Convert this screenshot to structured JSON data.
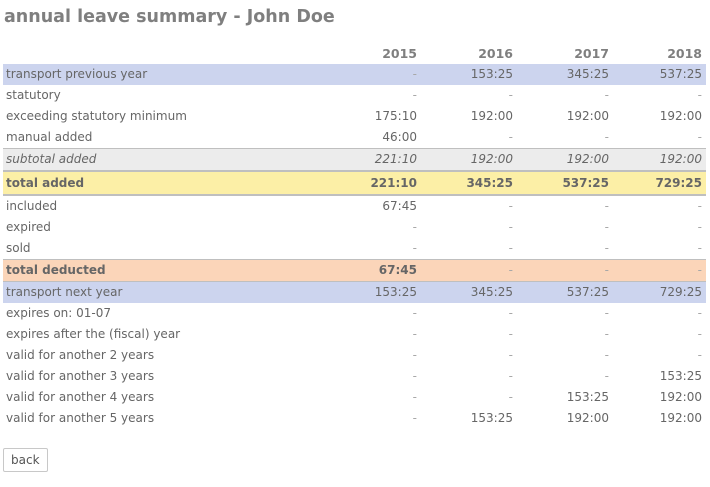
{
  "page": {
    "title": "annual leave summary - John Doe"
  },
  "table": {
    "years": [
      "2015",
      "2016",
      "2017",
      "2018"
    ],
    "rows": [
      {
        "style": "blue",
        "label": "transport previous year",
        "values": [
          "-",
          "153:25",
          "345:25",
          "537:25"
        ]
      },
      {
        "style": "plain",
        "label": "statutory",
        "values": [
          "-",
          "-",
          "-",
          "-"
        ]
      },
      {
        "style": "plain",
        "label": "exceeding statutory minimum",
        "values": [
          "175:10",
          "192:00",
          "192:00",
          "192:00"
        ]
      },
      {
        "style": "plain",
        "label": "manual added",
        "values": [
          "46:00",
          "-",
          "-",
          "-"
        ]
      },
      {
        "style": "grey",
        "label": "subtotal added",
        "values": [
          "221:10",
          "192:00",
          "192:00",
          "192:00"
        ]
      },
      {
        "style": "yellow",
        "label": "total added",
        "values": [
          "221:10",
          "345:25",
          "537:25",
          "729:25"
        ]
      },
      {
        "style": "plain",
        "label": "included",
        "values": [
          "67:45",
          "-",
          "-",
          "-"
        ]
      },
      {
        "style": "plain",
        "label": "expired",
        "values": [
          "-",
          "-",
          "-",
          "-"
        ]
      },
      {
        "style": "plain",
        "label": "sold",
        "values": [
          "-",
          "-",
          "-",
          "-"
        ]
      },
      {
        "style": "orange",
        "label": "total deducted",
        "values": [
          "67:45",
          "-",
          "-",
          "-"
        ]
      },
      {
        "style": "blue",
        "label": "transport next year",
        "values": [
          "153:25",
          "345:25",
          "537:25",
          "729:25"
        ]
      },
      {
        "style": "plain",
        "label": "expires on: 01-07",
        "values": [
          "-",
          "-",
          "-",
          "-"
        ]
      },
      {
        "style": "plain",
        "label": "expires after the (fiscal) year",
        "values": [
          "-",
          "-",
          "-",
          "-"
        ]
      },
      {
        "style": "plain",
        "label": "valid for another 2 years",
        "values": [
          "-",
          "-",
          "-",
          "-"
        ]
      },
      {
        "style": "plain",
        "label": "valid for another 3 years",
        "values": [
          "-",
          "-",
          "-",
          "153:25"
        ]
      },
      {
        "style": "plain",
        "label": "valid for another 4 years",
        "values": [
          "-",
          "-",
          "153:25",
          "192:00"
        ]
      },
      {
        "style": "plain",
        "label": "valid for another 5 years",
        "values": [
          "-",
          "153:25",
          "192:00",
          "192:00"
        ]
      }
    ]
  },
  "actions": {
    "back_label": "back"
  },
  "colors": {
    "transport_row": "#ccd4ee",
    "subtotal_row": "#ececec",
    "total_added_row": "#fcefa6",
    "total_deducted_row": "#fbd5b9"
  }
}
